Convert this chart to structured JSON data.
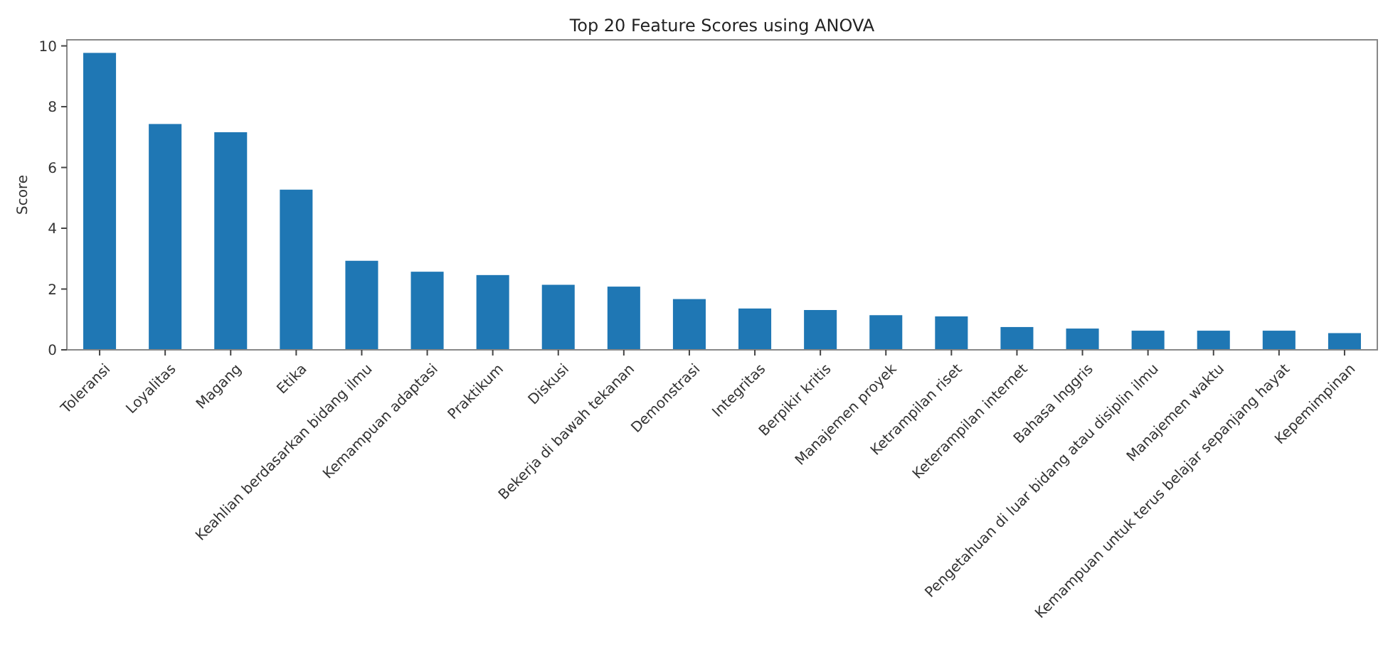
{
  "chart_data": {
    "type": "bar",
    "title": "Top 20 Feature Scores using ANOVA",
    "ylabel": "Score",
    "categories": [
      "Toleransi",
      "Loyalitas",
      "Magang",
      "Etika",
      "Keahlian berdasarkan bidang ilmu",
      "Kemampuan adaptasi",
      "Praktikum",
      "Diskusi",
      "Bekerja di bawah tekanan",
      "Demonstrasi",
      "Integritas",
      "Berpikir kritis",
      "Manajemen proyek",
      "Ketrampilan riset",
      "Keterampilan internet",
      "Bahasa Inggris",
      "Pengetahuan di luar bidang atau disiplin ilmu",
      "Manajemen waktu",
      "Kemampuan untuk terus belajar sepanjang hayat",
      "Kepemimpinan"
    ],
    "values": [
      9.77,
      7.43,
      7.16,
      5.27,
      2.93,
      2.57,
      2.46,
      2.14,
      2.08,
      1.67,
      1.36,
      1.31,
      1.14,
      1.1,
      0.75,
      0.7,
      0.63,
      0.63,
      0.63,
      0.55
    ],
    "color": "#1f77b4",
    "ylim": [
      0,
      10.2
    ],
    "yticks": [
      0,
      2,
      4,
      6,
      8,
      10
    ],
    "grid": false
  }
}
